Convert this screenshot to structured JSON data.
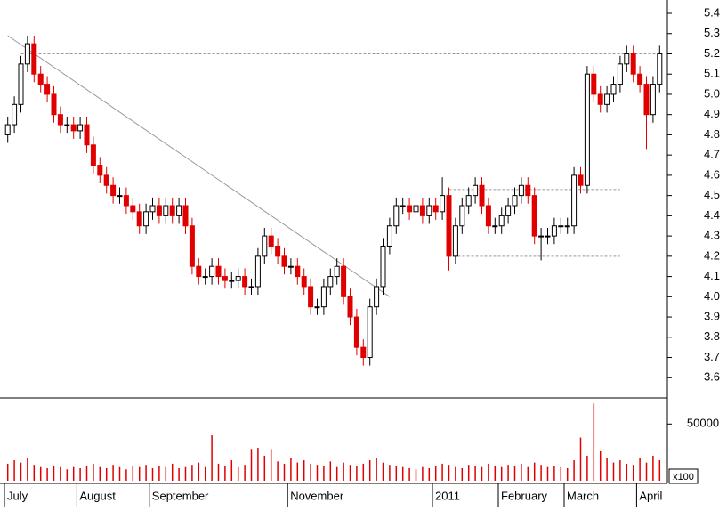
{
  "chart_data": {
    "type": "candlestick",
    "categories": [
      "July",
      null,
      null,
      null,
      null,
      null,
      null,
      null,
      null,
      null,
      null,
      "August",
      null,
      null,
      null,
      null,
      null,
      null,
      null,
      null,
      null,
      null,
      "September",
      null,
      null,
      null,
      null,
      null,
      null,
      null,
      null,
      null,
      null,
      null,
      null,
      null,
      null,
      null,
      null,
      null,
      null,
      null,
      null,
      "November",
      null,
      null,
      null,
      null,
      null,
      null,
      null,
      null,
      null,
      null,
      null,
      null,
      null,
      null,
      null,
      null,
      null,
      null,
      null,
      null,
      null,
      "2011",
      null,
      null,
      null,
      null,
      null,
      null,
      null,
      null,
      null,
      "February",
      null,
      null,
      null,
      null,
      null,
      null,
      null,
      null,
      null,
      "March",
      null,
      null,
      null,
      null,
      null,
      null,
      null,
      null,
      null,
      null,
      "April",
      null,
      null,
      null
    ],
    "open": [
      4.8,
      4.85,
      4.95,
      5.15,
      5.25,
      5.1,
      5.05,
      5.0,
      4.9,
      4.85,
      4.85,
      4.82,
      4.85,
      4.75,
      4.65,
      4.6,
      4.55,
      4.5,
      4.5,
      4.45,
      4.42,
      4.35,
      4.42,
      4.45,
      4.4,
      4.45,
      4.4,
      4.45,
      4.35,
      4.15,
      4.1,
      4.1,
      4.15,
      4.1,
      4.08,
      4.08,
      4.1,
      4.05,
      4.05,
      4.2,
      4.3,
      4.25,
      4.2,
      4.15,
      4.15,
      4.1,
      4.05,
      3.95,
      3.95,
      4.05,
      4.1,
      4.15,
      4.0,
      3.9,
      3.75,
      3.7,
      3.95,
      4.05,
      4.25,
      4.35,
      4.45,
      4.45,
      4.42,
      4.45,
      4.4,
      4.45,
      4.42,
      4.5,
      4.2,
      4.35,
      4.45,
      4.5,
      4.55,
      4.45,
      4.35,
      4.35,
      4.4,
      4.45,
      4.5,
      4.55,
      4.5,
      4.3,
      4.3,
      4.3,
      4.35,
      4.35,
      4.35,
      4.6,
      4.55,
      5.1,
      5.0,
      4.95,
      5.0,
      5.05,
      5.15,
      5.2,
      5.1,
      5.05,
      4.9,
      5.05
    ],
    "high": [
      4.89,
      4.99,
      5.19,
      5.29,
      5.29,
      5.14,
      5.09,
      5.04,
      4.94,
      4.89,
      4.89,
      4.89,
      4.89,
      4.79,
      4.69,
      4.64,
      4.59,
      4.54,
      4.54,
      4.49,
      4.46,
      4.46,
      4.49,
      4.49,
      4.49,
      4.49,
      4.49,
      4.49,
      4.39,
      4.19,
      4.14,
      4.19,
      4.19,
      4.14,
      4.12,
      4.14,
      4.14,
      4.09,
      4.24,
      4.34,
      4.34,
      4.29,
      4.24,
      4.19,
      4.19,
      4.14,
      4.09,
      3.99,
      4.09,
      4.14,
      4.19,
      4.19,
      4.04,
      3.94,
      3.79,
      3.99,
      4.09,
      4.29,
      4.39,
      4.49,
      4.49,
      4.49,
      4.49,
      4.49,
      4.49,
      4.49,
      4.59,
      4.54,
      4.39,
      4.49,
      4.54,
      4.59,
      4.59,
      4.49,
      4.39,
      4.44,
      4.49,
      4.54,
      4.59,
      4.59,
      4.54,
      4.34,
      4.34,
      4.39,
      4.39,
      4.39,
      4.64,
      4.64,
      5.14,
      5.14,
      5.04,
      5.04,
      5.09,
      5.19,
      5.24,
      5.24,
      5.14,
      5.09,
      5.09,
      5.24
    ],
    "low": [
      4.76,
      4.81,
      4.91,
      5.11,
      5.06,
      5.01,
      4.96,
      4.86,
      4.81,
      4.81,
      4.78,
      4.78,
      4.71,
      4.61,
      4.56,
      4.51,
      4.46,
      4.46,
      4.41,
      4.38,
      4.31,
      4.31,
      4.38,
      4.36,
      4.36,
      4.36,
      4.36,
      4.31,
      4.11,
      4.06,
      4.06,
      4.06,
      4.06,
      4.04,
      4.04,
      4.04,
      4.01,
      4.01,
      4.01,
      4.16,
      4.21,
      4.16,
      4.11,
      4.11,
      4.06,
      4.01,
      3.91,
      3.91,
      3.91,
      4.01,
      4.06,
      3.96,
      3.86,
      3.71,
      3.66,
      3.66,
      3.91,
      4.01,
      4.21,
      4.31,
      4.41,
      4.38,
      4.38,
      4.36,
      4.36,
      4.38,
      4.38,
      4.13,
      4.16,
      4.31,
      4.41,
      4.46,
      4.41,
      4.31,
      4.31,
      4.31,
      4.36,
      4.41,
      4.46,
      4.46,
      4.26,
      4.18,
      4.26,
      4.26,
      4.31,
      4.31,
      4.31,
      4.51,
      4.51,
      4.96,
      4.91,
      4.91,
      4.96,
      5.01,
      5.11,
      5.06,
      5.01,
      4.73,
      4.86,
      5.01
    ],
    "close": [
      4.85,
      4.95,
      5.15,
      5.25,
      5.1,
      5.05,
      5.0,
      4.9,
      4.85,
      4.85,
      4.82,
      4.85,
      4.75,
      4.65,
      4.6,
      4.55,
      4.5,
      4.5,
      4.45,
      4.42,
      4.35,
      4.42,
      4.45,
      4.4,
      4.45,
      4.4,
      4.45,
      4.35,
      4.15,
      4.1,
      4.1,
      4.15,
      4.1,
      4.08,
      4.08,
      4.1,
      4.05,
      4.05,
      4.2,
      4.3,
      4.25,
      4.2,
      4.15,
      4.15,
      4.1,
      4.05,
      3.95,
      3.95,
      4.05,
      4.1,
      4.15,
      4.0,
      3.9,
      3.75,
      3.7,
      3.95,
      4.05,
      4.25,
      4.35,
      4.45,
      4.45,
      4.42,
      4.45,
      4.4,
      4.45,
      4.42,
      4.5,
      4.2,
      4.35,
      4.45,
      4.5,
      4.55,
      4.45,
      4.35,
      4.35,
      4.4,
      4.45,
      4.5,
      4.55,
      4.5,
      4.3,
      4.3,
      4.3,
      4.35,
      4.35,
      4.35,
      4.6,
      4.55,
      5.1,
      5.0,
      4.95,
      5.0,
      5.05,
      5.15,
      5.2,
      5.1,
      5.05,
      4.9,
      5.05,
      5.2
    ],
    "color_up": "#000000",
    "color_down": "#e00000",
    "ylim": [
      3.5,
      5.466
    ],
    "yticks": [
      3.6,
      3.7,
      3.8,
      3.9,
      {
        "value": 4,
        "label": "4.0"
      },
      4.1,
      4.2,
      4.3,
      4.4,
      4.5,
      4.6,
      4.7,
      4.8,
      4.9,
      {
        "value": 5,
        "label": "5.0"
      },
      5.1,
      5.2,
      5.3,
      5.4
    ],
    "reference_lines": [
      {
        "value": 5.2,
        "from": 2,
        "to": 99
      },
      {
        "value": 4.53,
        "from": 67,
        "to": 93
      },
      {
        "value": 4.2,
        "from": 67,
        "to": 93
      }
    ],
    "trendline": {
      "x": [
        0,
        58
      ],
      "y": [
        5.29,
        4.0
      ]
    },
    "volume": {
      "values": [
        15000,
        18000,
        16000,
        20000,
        14000,
        12000,
        11000,
        13000,
        12000,
        10000,
        12000,
        11000,
        13000,
        15000,
        12000,
        11000,
        14000,
        12000,
        10000,
        13000,
        12000,
        14000,
        11000,
        13000,
        12000,
        15000,
        11000,
        12000,
        14000,
        16000,
        12000,
        40000,
        15000,
        13000,
        18000,
        12000,
        14000,
        28000,
        29000,
        22000,
        28000,
        17000,
        15000,
        20000,
        16000,
        18000,
        15000,
        14000,
        13000,
        17000,
        12000,
        16000,
        14000,
        13000,
        15000,
        18000,
        20000,
        16000,
        14000,
        13000,
        12000,
        11000,
        10000,
        12000,
        11000,
        13000,
        15000,
        14000,
        12000,
        11000,
        14000,
        13000,
        12000,
        15000,
        13000,
        12000,
        14000,
        13000,
        15000,
        12000,
        16000,
        14000,
        12000,
        13000,
        12000,
        11000,
        18000,
        38000,
        22000,
        68000,
        26000,
        20000,
        16000,
        18000,
        15000,
        14000,
        20000,
        16000,
        22000,
        18000
      ],
      "ylim": [
        0,
        73000
      ],
      "yticks": [
        50000
      ],
      "unit_label": "x100",
      "color": "#e00000"
    }
  }
}
